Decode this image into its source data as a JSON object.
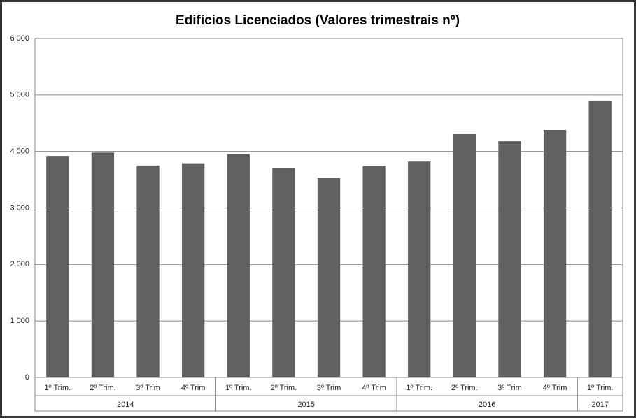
{
  "chart_data": {
    "type": "bar",
    "title": "Edifícios Licenciados (Valores trimestrais nº)",
    "groups": [
      {
        "label": "2014",
        "categories": [
          "1º Trim.",
          "2º Trim.",
          "3º Trim",
          "4º Trim"
        ]
      },
      {
        "label": "2015",
        "categories": [
          "1º Trim.",
          "2º Trim.",
          "3º Trim",
          "4º Trim"
        ]
      },
      {
        "label": "2016",
        "categories": [
          "1º Trim.",
          "2º Trim.",
          "3º Trim",
          "4º Trim"
        ]
      },
      {
        "label": "2017",
        "categories": [
          "1º Trim."
        ]
      }
    ],
    "values": [
      3920,
      3980,
      3750,
      3790,
      3950,
      3710,
      3530,
      3740,
      3820,
      4310,
      4180,
      4380,
      4900
    ],
    "color": "#606060",
    "ylim": [
      0,
      6000
    ],
    "yticks": [
      0,
      {
        "value": 1000,
        "label": "1 000"
      },
      {
        "value": 2000,
        "label": "2 000"
      },
      {
        "value": 3000,
        "label": "3 000"
      },
      {
        "value": 4000,
        "label": "4 000"
      },
      {
        "value": 5000,
        "label": "5 000"
      },
      {
        "value": 6000,
        "label": "6 000"
      }
    ],
    "grid": true
  }
}
